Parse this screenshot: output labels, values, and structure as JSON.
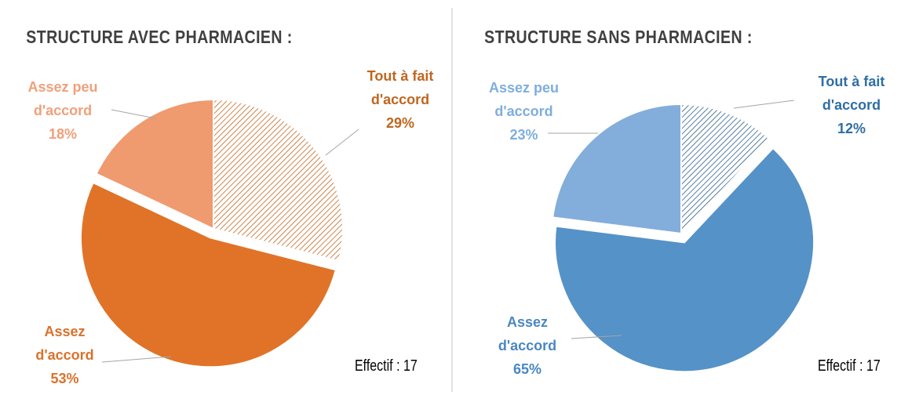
{
  "chart_data": [
    {
      "type": "pie",
      "title": "STRUCTURE AVEC PHARMACIEN :",
      "categories": [
        "Tout à fait d'accord",
        "Assez d'accord",
        "Assez peu d'accord"
      ],
      "values": [
        29,
        53,
        18
      ],
      "value_labels": [
        "29%",
        "53%",
        "18%"
      ],
      "colors": [
        "#c0661e",
        "#e07328",
        "#f09a6f"
      ],
      "label_colors": [
        "#c0661e",
        "#d9722b",
        "#f0a07a"
      ],
      "hatched": [
        true,
        false,
        false
      ],
      "explode": [
        false,
        true,
        false
      ],
      "annotation": "Effectif : 17"
    },
    {
      "type": "pie",
      "title": "STRUCTURE SANS PHARMACIEN :",
      "categories": [
        "Tout à fait d'accord",
        "Assez d'accord",
        "Assez peu d'accord"
      ],
      "values": [
        12,
        65,
        23
      ],
      "value_labels": [
        "12%",
        "65%",
        "23%"
      ],
      "colors": [
        "#2e5f8a",
        "#5592c8",
        "#83aedb"
      ],
      "label_colors": [
        "#2f6ea5",
        "#4a87c2",
        "#7eaedd"
      ],
      "hatched": [
        true,
        false,
        false
      ],
      "explode": [
        false,
        true,
        false
      ],
      "annotation": "Effectif : 17"
    }
  ]
}
